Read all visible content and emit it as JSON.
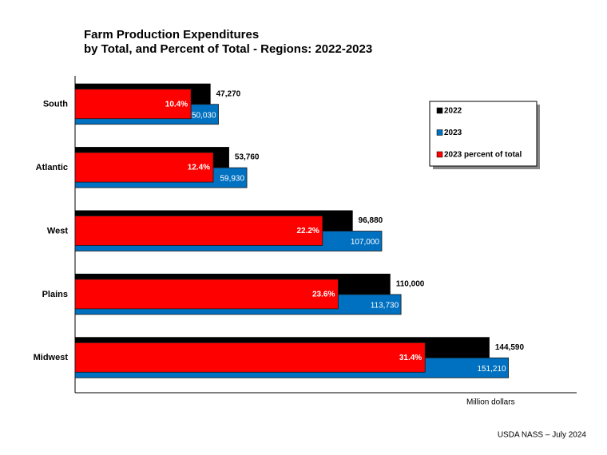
{
  "chart_data": {
    "type": "hbar",
    "title": "Farm Production Expenditures",
    "subtitle": "by  Total, and Percent of Total - Regions: 2022-2023",
    "xlabel": "Million dollars",
    "source": "USDA NASS – July 2024",
    "categories": [
      "South",
      "Atlantic",
      "West",
      "Plains",
      "Midwest"
    ],
    "xlim": [
      0,
      175000
    ],
    "x2lim": [
      0,
      45
    ],
    "series": [
      {
        "name": "2022",
        "color": "#000000",
        "values": [
          47270,
          53760,
          96880,
          110000,
          144590
        ],
        "value_labels": [
          "47,270",
          "53,760",
          "96,880",
          "110,000",
          "144,590"
        ]
      },
      {
        "name": "2023",
        "color": "#0070c0",
        "values": [
          50030,
          59930,
          107000,
          113730,
          151210
        ],
        "value_labels": [
          "50,030",
          "59,930",
          "107,000",
          "113,730",
          "151,210"
        ]
      },
      {
        "name": "2023 percent of total",
        "color": "#ff0000",
        "axis": "x2",
        "values": [
          10.4,
          12.4,
          22.2,
          23.6,
          31.4
        ],
        "value_labels": [
          "10.4%",
          "12.4%",
          "22.2%",
          "23.6%",
          "31.4%"
        ]
      }
    ],
    "legend": "upper right"
  }
}
